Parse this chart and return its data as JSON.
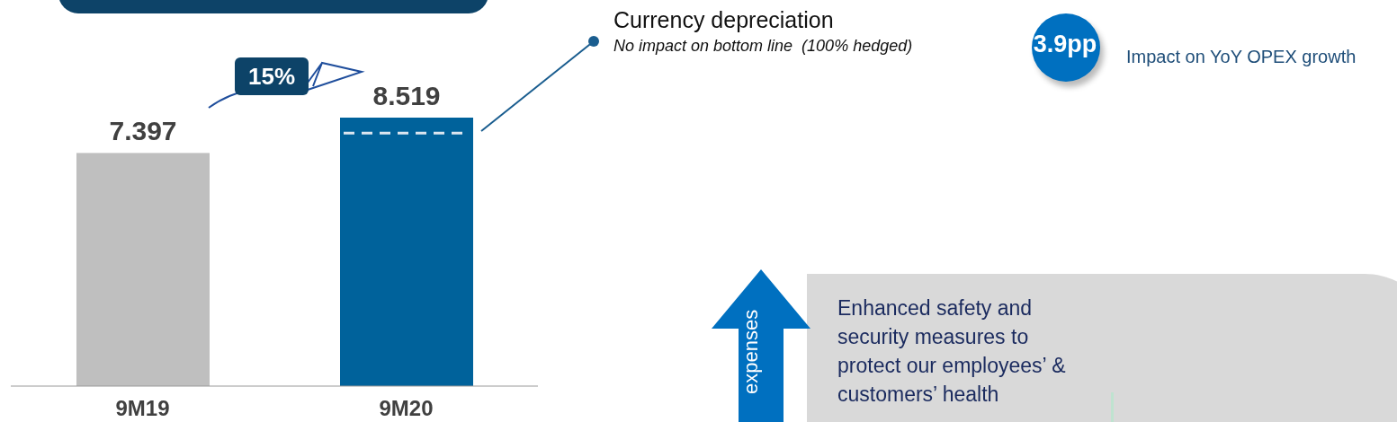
{
  "chart_data": {
    "type": "bar",
    "categories": [
      "9M19",
      "9M20"
    ],
    "values": [
      7.397,
      8.519
    ],
    "colors": [
      "#bfbfbf",
      "#00629b"
    ],
    "data_labels": true,
    "ref_lines": [
      {
        "axis": "y",
        "value": 8.03,
        "color": "#dce6f0",
        "line_style": "dashed"
      }
    ],
    "annotations": [
      "15%",
      "Currency depreciation",
      "No impact on bottom line  (100% hedged)",
      "3.9pp",
      "Impact on YoY OPEX growth",
      "expenses",
      "Enhanced safety and security measures to protect our employees’ & customers’ health"
    ]
  }
}
